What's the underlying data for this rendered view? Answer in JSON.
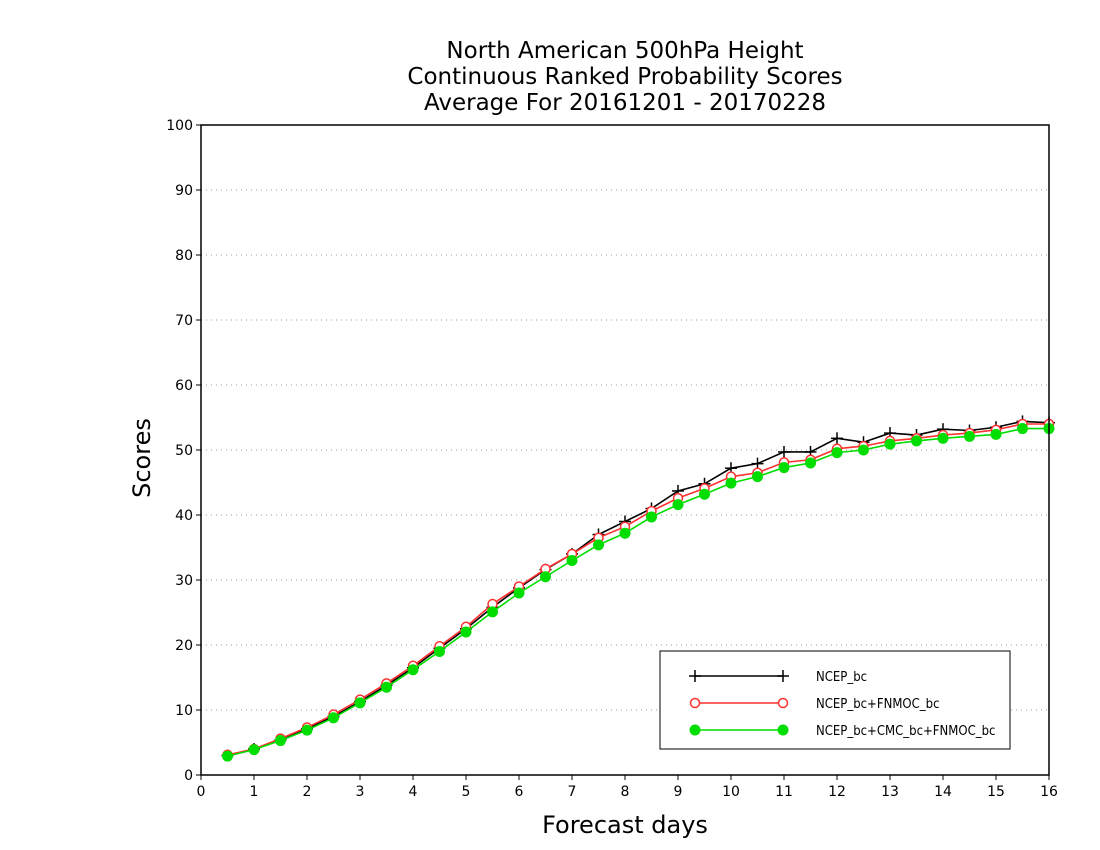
{
  "chart_data": {
    "type": "line",
    "title": [
      "North American 500hPa Height",
      "Continuous Ranked Probability Scores",
      "Average For 20161201 - 20170228"
    ],
    "xlabel": "Forecast days",
    "ylabel": "Scores",
    "xlim": [
      0,
      16
    ],
    "ylim": [
      0,
      100
    ],
    "x_ticks": [
      "0",
      "1",
      "2",
      "3",
      "4",
      "5",
      "6",
      "7",
      "8",
      "9",
      "10",
      "11",
      "12",
      "13",
      "14",
      "15",
      "16"
    ],
    "y_ticks": [
      "0",
      "10",
      "20",
      "30",
      "40",
      "50",
      "60",
      "70",
      "80",
      "90",
      "100"
    ],
    "grid": "horizontal dotted",
    "legend_position": "bottom-right",
    "x": [
      0.5,
      1,
      1.5,
      2,
      2.5,
      3,
      3.5,
      4,
      4.5,
      5,
      5.5,
      6,
      6.5,
      7,
      7.5,
      8,
      8.5,
      9,
      9.5,
      10,
      10.5,
      11,
      11.5,
      12,
      12.5,
      13,
      13.5,
      14,
      14.5,
      15,
      15.5,
      16
    ],
    "series": [
      {
        "name": "NCEP_bc",
        "color": "#000000",
        "marker": "plus",
        "values": [
          3.0,
          4.0,
          5.4,
          7.1,
          9.0,
          11.3,
          13.8,
          16.5,
          19.5,
          22.5,
          25.8,
          28.8,
          31.6,
          34.0,
          37.0,
          39.0,
          41.0,
          43.7,
          44.8,
          47.2,
          47.9,
          49.7,
          49.7,
          51.8,
          51.2,
          52.6,
          52.3,
          53.2,
          53.0,
          53.5,
          54.4,
          54.2
        ]
      },
      {
        "name": "NCEP_bc+FNMOC_bc",
        "color": "#ff3030",
        "marker": "open-circle",
        "values": [
          3.1,
          4.0,
          5.6,
          7.3,
          9.3,
          11.6,
          14.1,
          16.8,
          19.8,
          22.8,
          26.3,
          29.0,
          31.7,
          34.0,
          36.5,
          38.2,
          40.6,
          42.6,
          44.1,
          45.9,
          46.5,
          48.1,
          48.5,
          50.2,
          50.6,
          51.4,
          51.8,
          52.3,
          52.6,
          53.1,
          54.0,
          54.0
        ]
      },
      {
        "name": "NCEP_bc+CMC_bc+FNMOC_bc",
        "color": "#00dd00",
        "marker": "filled-circle",
        "values": [
          2.9,
          3.9,
          5.3,
          6.9,
          8.8,
          11.1,
          13.5,
          16.2,
          19.0,
          22.0,
          25.1,
          28.0,
          30.5,
          33.0,
          35.4,
          37.2,
          39.7,
          41.6,
          43.2,
          44.9,
          45.9,
          47.3,
          48.0,
          49.6,
          50.0,
          50.9,
          51.4,
          51.8,
          52.1,
          52.4,
          53.3,
          53.3
        ]
      }
    ]
  }
}
